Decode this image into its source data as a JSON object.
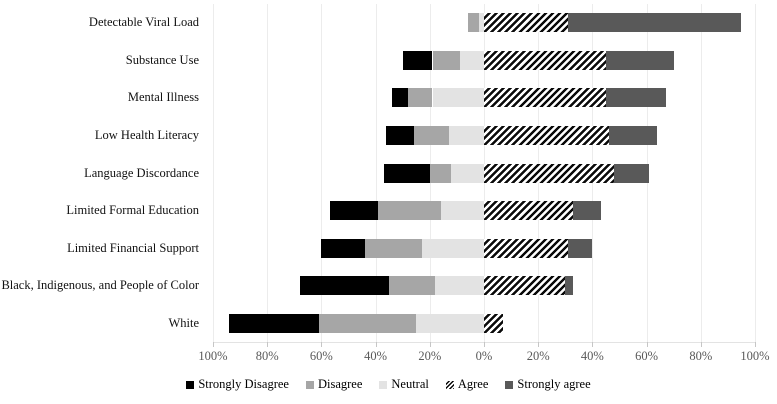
{
  "chart_data": {
    "type": "bar",
    "variant": "diverging-stacked-horizontal-likert",
    "title": "",
    "categories": [
      "Detectable Viral Load",
      "Substance Use",
      "Mental Illness",
      "Low Health Literacy",
      "Language Discordance",
      "Limited Formal Education",
      "Limited Financial Support",
      "Black, Indigenous, and People of Color",
      "White"
    ],
    "series": [
      {
        "name": "Strongly Disagree",
        "side": "left",
        "color": "#000000",
        "pattern": "solid",
        "values": [
          0,
          11,
          6,
          10,
          17,
          18,
          16,
          33,
          33
        ]
      },
      {
        "name": "Disagree",
        "side": "left",
        "color": "#a6a6a6",
        "pattern": "solid",
        "values": [
          4,
          10,
          9,
          13,
          8,
          23,
          21,
          17,
          36
        ]
      },
      {
        "name": "Neutral",
        "side": "left",
        "color": "#e3e3e3",
        "pattern": "solid",
        "values": [
          2,
          9,
          19,
          13,
          12,
          16,
          23,
          18,
          25
        ]
      },
      {
        "name": "Agree",
        "side": "right",
        "color": "#000000",
        "pattern": "diagonal-hatch",
        "values": [
          31,
          45,
          45,
          46,
          48,
          33,
          31,
          30,
          7
        ]
      },
      {
        "name": "Strongly agree",
        "side": "right",
        "color": "#595959",
        "pattern": "solid",
        "values": [
          64,
          25,
          22,
          18,
          13,
          10,
          9,
          3,
          0
        ]
      }
    ],
    "x_axis": {
      "tick_labels": [
        "100%",
        "80%",
        "60%",
        "40%",
        "20%",
        "0%",
        "20%",
        "40%",
        "60%",
        "80%",
        "100%"
      ],
      "min": -100,
      "max": 100,
      "tick_step": 20,
      "label_color": "#595959"
    },
    "legend": {
      "position": "bottom",
      "items": [
        "Strongly Disagree",
        "Disagree",
        "Neutral",
        "Agree",
        "Strongly agree"
      ]
    },
    "grid": true,
    "gridline_color": "#ececec",
    "background_color": "#ffffff"
  }
}
